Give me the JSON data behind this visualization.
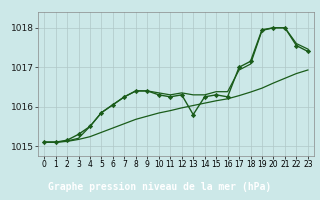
{
  "xlabel": "Graphe pression niveau de la mer (hPa)",
  "bg_color": "#cce8e8",
  "plot_bg_color": "#cce8e8",
  "label_bg_color": "#2d6b2d",
  "label_text_color": "#ffffff",
  "grid_color": "#b0c8c8",
  "line_color": "#1a5c1a",
  "marker_color": "#1a5c1a",
  "x_values": [
    0,
    1,
    2,
    3,
    4,
    5,
    6,
    7,
    8,
    9,
    10,
    11,
    12,
    13,
    14,
    15,
    16,
    17,
    18,
    19,
    20,
    21,
    22,
    23
  ],
  "y_main": [
    1015.1,
    1015.1,
    1015.15,
    1015.3,
    1015.5,
    1015.85,
    1016.05,
    1016.25,
    1016.4,
    1016.4,
    1016.3,
    1016.25,
    1016.3,
    1015.8,
    1016.25,
    1016.3,
    1016.25,
    1017.0,
    1017.15,
    1017.95,
    1018.0,
    1018.0,
    1017.55,
    1017.4
  ],
  "y_min": [
    1015.1,
    1015.1,
    1015.12,
    1015.17,
    1015.24,
    1015.35,
    1015.46,
    1015.57,
    1015.68,
    1015.76,
    1015.84,
    1015.9,
    1015.97,
    1016.03,
    1016.09,
    1016.15,
    1016.2,
    1016.28,
    1016.37,
    1016.47,
    1016.6,
    1016.72,
    1016.84,
    1016.93
  ],
  "y_max": [
    1015.1,
    1015.1,
    1015.13,
    1015.2,
    1015.5,
    1015.85,
    1016.05,
    1016.25,
    1016.4,
    1016.4,
    1016.35,
    1016.3,
    1016.35,
    1016.3,
    1016.3,
    1016.38,
    1016.38,
    1016.93,
    1017.08,
    1017.93,
    1018.0,
    1018.0,
    1017.6,
    1017.46
  ],
  "ylim": [
    1014.75,
    1018.4
  ],
  "yticks": [
    1015,
    1016,
    1017,
    1018
  ],
  "xlim": [
    -0.5,
    23.5
  ],
  "xtick_fontsize": 5.5,
  "ytick_fontsize": 6.5
}
